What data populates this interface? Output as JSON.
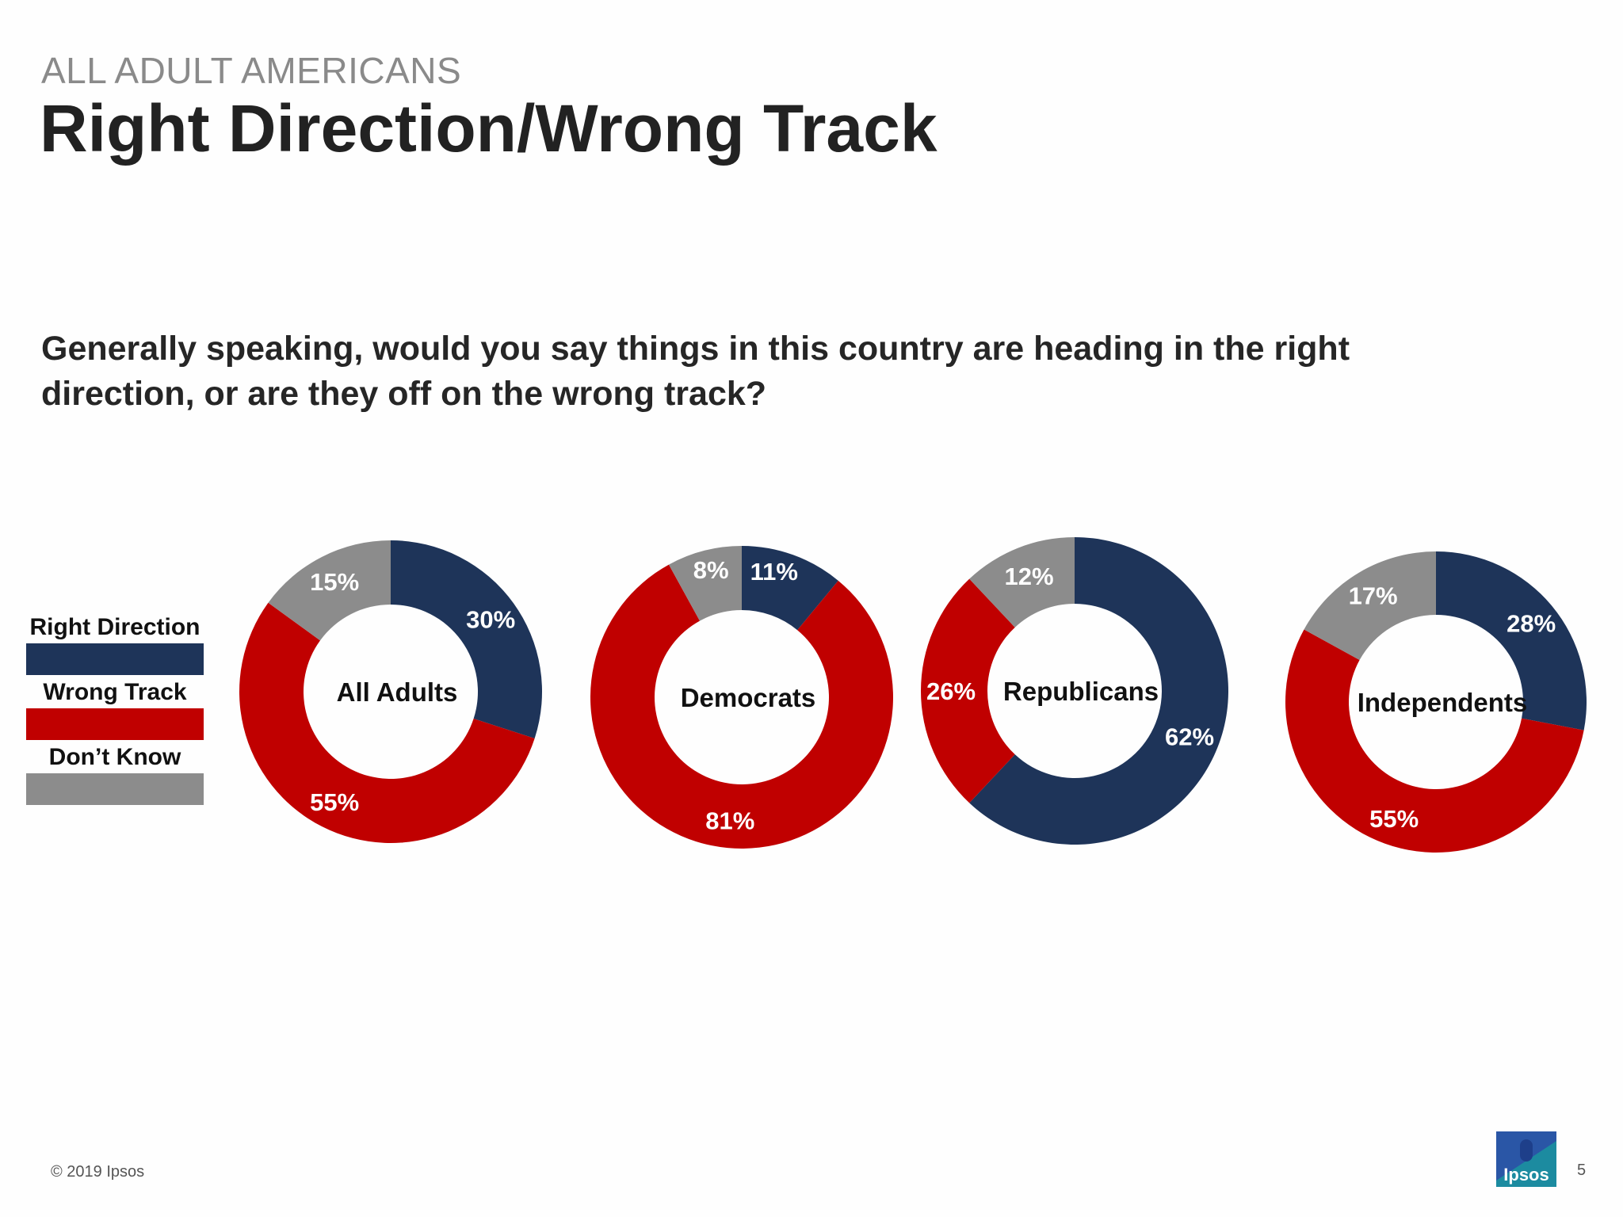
{
  "header": {
    "kicker": "ALL ADULT AMERICANS",
    "title": "Right Direction/Wrong Track"
  },
  "question": "Generally speaking, would you say things in this country are heading in the right direction, or are they off on the wrong track?",
  "legend": [
    {
      "label": "Right Direction",
      "color": "#1e3459"
    },
    {
      "label": "Wrong Track",
      "color": "#c00000"
    },
    {
      "label": "Don’t Know",
      "color": "#8c8c8c"
    }
  ],
  "chart_data": [
    {
      "type": "pie",
      "title": "All Adults",
      "categories": [
        "Right Direction",
        "Wrong Track",
        "Don’t Know"
      ],
      "values": [
        30,
        55,
        15
      ],
      "labels": [
        "30%",
        "55%",
        "15%"
      ]
    },
    {
      "type": "pie",
      "title": "Democrats",
      "categories": [
        "Right Direction",
        "Wrong Track",
        "Don’t Know"
      ],
      "values": [
        11,
        81,
        8
      ],
      "labels": [
        "11%",
        "81%",
        "8%"
      ]
    },
    {
      "type": "pie",
      "title": "Republicans",
      "categories": [
        "Right Direction",
        "Wrong Track",
        "Don’t Know"
      ],
      "values": [
        62,
        26,
        12
      ],
      "labels": [
        "62%",
        "26%",
        "12%"
      ]
    },
    {
      "type": "pie",
      "title": "Independents",
      "categories": [
        "Right Direction",
        "Wrong Track",
        "Don’t Know"
      ],
      "values": [
        28,
        55,
        17
      ],
      "labels": [
        "28%",
        "55%",
        "17%"
      ]
    }
  ],
  "footer": {
    "copyright": "© 2019 Ipsos",
    "logo_text": "Ipsos",
    "page_number": "5"
  }
}
